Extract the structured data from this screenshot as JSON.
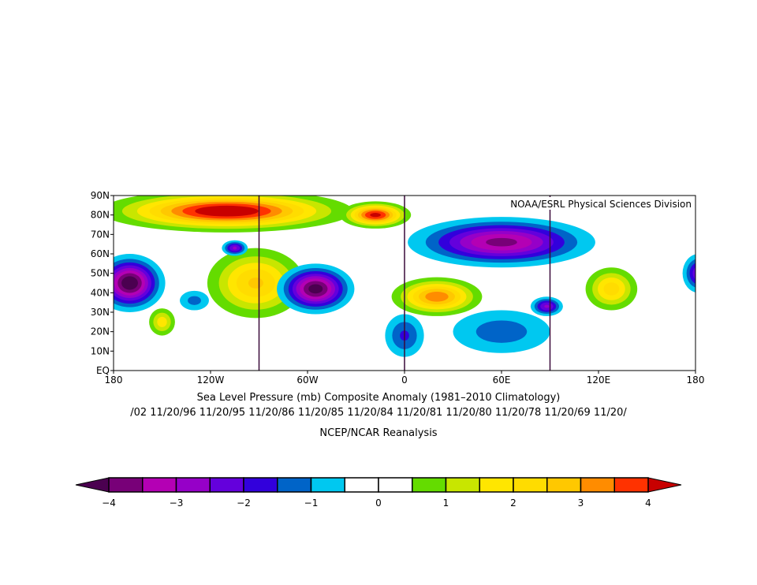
{
  "credit": "NOAA/ESRL Physical Sciences Division",
  "title": "Sea Level Pressure (mb) Composite Anomaly (1981–2010 Climatology)",
  "dates_line": "/02 11/20/96 11/20/95 11/20/86 11/20/85 11/20/84 11/20/81 11/20/80 11/20/78 11/20/69 11/20/",
  "source": "NCEP/NCAR Reanalysis",
  "chart_data": {
    "type": "heatmap",
    "projection": "cylindrical equidistant",
    "lon_range": [
      -180,
      180
    ],
    "lat_range": [
      0,
      90
    ],
    "x_ticks": [
      "180",
      "120W",
      "60W",
      "0",
      "60E",
      "120E",
      "180"
    ],
    "x_tick_values": [
      -180,
      -120,
      -60,
      0,
      60,
      120,
      180
    ],
    "y_ticks": [
      "EQ",
      "10N",
      "20N",
      "30N",
      "40N",
      "50N",
      "60N",
      "70N",
      "80N",
      "90N"
    ],
    "y_tick_values": [
      0,
      10,
      20,
      30,
      40,
      50,
      60,
      70,
      80,
      90
    ],
    "meridian_lines": [
      -90,
      0,
      90
    ],
    "anomaly_centers": [
      {
        "name": "arctic-high",
        "lon": -110,
        "lat": 82,
        "rlon": 78,
        "rlat": 11,
        "value": 4.6
      },
      {
        "name": "greenland-sea-high",
        "lon": -18,
        "lat": 80,
        "rlon": 22,
        "rlat": 7,
        "value": 4.2
      },
      {
        "name": "north-america-high",
        "lon": -92,
        "lat": 45,
        "rlon": 30,
        "rlat": 18,
        "value": 2.6
      },
      {
        "name": "mediterranean-high",
        "lon": 20,
        "lat": 38,
        "rlon": 28,
        "rlat": 10,
        "value": 3.4
      },
      {
        "name": "east-asia-high",
        "lon": 128,
        "lat": 42,
        "rlon": 16,
        "rlat": 11,
        "value": 2.3
      },
      {
        "name": "central-pacific-high",
        "lon": -150,
        "lat": 25,
        "rlon": 8,
        "rlat": 7,
        "value": 1.8
      },
      {
        "name": "aleutian-low-w",
        "lon": -170,
        "lat": 45,
        "rlon": 22,
        "rlat": 15,
        "value": -4.5
      },
      {
        "name": "aleutian-low-e",
        "lon": 182,
        "lat": 50,
        "rlon": 10,
        "rlat": 10,
        "value": -2.5
      },
      {
        "name": "north-atlantic-low",
        "lon": -55,
        "lat": 42,
        "rlon": 24,
        "rlat": 13,
        "value": -4.3
      },
      {
        "name": "hudson-bay-low",
        "lon": -105,
        "lat": 63,
        "rlon": 8,
        "rlat": 4,
        "value": -2.6
      },
      {
        "name": "eurasian-low",
        "lon": 60,
        "lat": 66,
        "rlon": 58,
        "rlat": 13,
        "value": -3.7
      },
      {
        "name": "tibet-low",
        "lon": 88,
        "lat": 33,
        "rlon": 10,
        "rlat": 5,
        "value": -2.6
      },
      {
        "name": "arabia-india-low",
        "lon": 60,
        "lat": 20,
        "rlon": 30,
        "rlat": 11,
        "value": -1.3
      },
      {
        "name": "west-africa-low",
        "lon": 0,
        "lat": 18,
        "rlon": 12,
        "rlat": 11,
        "value": -1.6
      },
      {
        "name": "east-pacific-low",
        "lon": -130,
        "lat": 36,
        "rlon": 9,
        "rlat": 5,
        "value": -1.2
      }
    ],
    "colorbar": {
      "labels": [
        "−4",
        "−3",
        "−2",
        "−1",
        "0",
        "1",
        "2",
        "3",
        "4"
      ],
      "label_values": [
        -4,
        -3,
        -2,
        -1,
        0,
        1,
        2,
        3,
        4
      ],
      "boundaries": [
        -4,
        -3.5,
        -3,
        -2.5,
        -2,
        -1.5,
        -1,
        -0.5,
        0,
        0.5,
        1,
        1.5,
        2,
        2.5,
        3,
        3.5,
        4
      ],
      "colors": [
        "#780078",
        "#b400b4",
        "#9600c8",
        "#6400dc",
        "#3200dc",
        "#0064c8",
        "#00c8f0",
        "#ffffff",
        "#ffffff",
        "#64dc00",
        "#c8e600",
        "#ffe600",
        "#ffdc00",
        "#ffc800",
        "#ff8c00",
        "#ff3200"
      ],
      "under_color": "#4b0050",
      "over_color": "#c80000"
    }
  }
}
